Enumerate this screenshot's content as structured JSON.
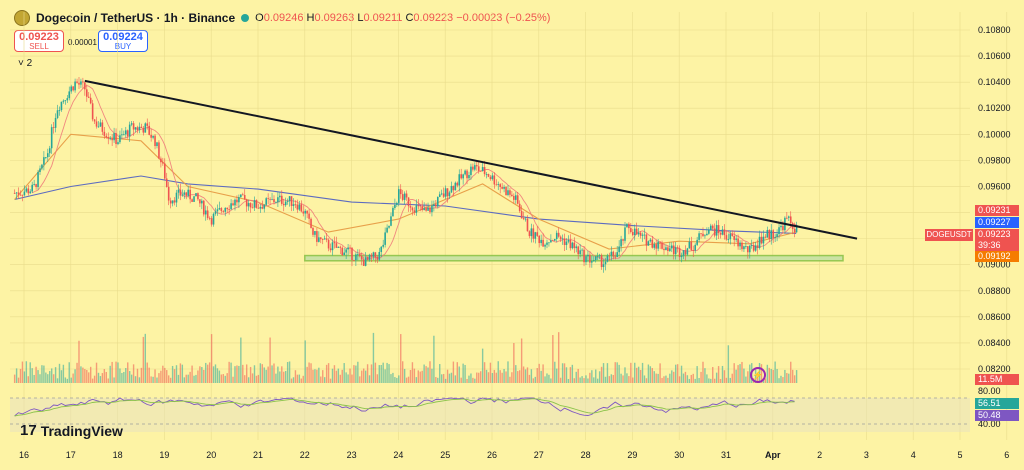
{
  "header": {
    "symbol": "Dogecoin / TetherUS · 1h · Binance",
    "ohlc": {
      "o_label": "O",
      "o": "0.09246",
      "h_label": "H",
      "h": "0.09263",
      "l_label": "L",
      "l": "0.09211",
      "c_label": "C",
      "c": "0.09223",
      "change": "−0.00023 (−0.25%)"
    },
    "coin_icon": "dogecoin-icon"
  },
  "trade": {
    "sell_price": "0.09223",
    "sell_label": "SELL",
    "buy_price": "0.09224",
    "buy_label": "BUY",
    "spread": "0.00001"
  },
  "indicators_count": "˅ 2",
  "price_tags": {
    "high": "0.09231",
    "blue": "0.09227",
    "last": "0.09223",
    "countdown": "39:36",
    "low": "0.09192",
    "symbol": "DOGEUSDT",
    "volume": "11.5M",
    "rsi_a": "56.51",
    "rsi_b": "50.48"
  },
  "logo": "TradingView",
  "colors": {
    "background": "#fdf3a4",
    "up": "#26a69a",
    "down": "#ef5350",
    "trendline": "#131722",
    "support": "#8bc34a",
    "ma_slow": "#5c6bc0",
    "ma_mid": "#e8a04a",
    "ma_fast": "#ef7b7b"
  },
  "chart_data": {
    "type": "candlestick",
    "symbol": "DOGEUSDT",
    "interval": "1h",
    "price_axis": {
      "ticks": [
        "0.10800",
        "0.10600",
        "0.10400",
        "0.10200",
        "0.10000",
        "0.09800",
        "0.09600",
        "0.09400",
        "0.09200",
        "0.09000",
        "0.08800",
        "0.08600",
        "0.08400",
        "0.08200"
      ],
      "range": [
        0.0815,
        0.109
      ]
    },
    "rsi_axis": {
      "ticks": [
        "80.00",
        "40.00"
      ]
    },
    "x_ticks": [
      "16",
      "17",
      "18",
      "19",
      "20",
      "21",
      "22",
      "23",
      "24",
      "25",
      "26",
      "27",
      "28",
      "29",
      "30",
      "31",
      "Apr",
      "2",
      "3",
      "4",
      "5",
      "6"
    ],
    "close_path": [
      [
        15.8,
        0.0955
      ],
      [
        16.2,
        0.0958
      ],
      [
        16.5,
        0.0985
      ],
      [
        16.7,
        0.102
      ],
      [
        16.9,
        0.103
      ],
      [
        17.1,
        0.104
      ],
      [
        17.3,
        0.1035
      ],
      [
        17.5,
        0.101
      ],
      [
        17.8,
        0.1
      ],
      [
        18.0,
        0.0995
      ],
      [
        18.3,
        0.1005
      ],
      [
        18.6,
        0.1005
      ],
      [
        18.8,
        0.0995
      ],
      [
        19.0,
        0.097
      ],
      [
        19.1,
        0.095
      ],
      [
        19.4,
        0.0955
      ],
      [
        19.7,
        0.095
      ],
      [
        20.0,
        0.0935
      ],
      [
        20.3,
        0.0945
      ],
      [
        20.6,
        0.095
      ],
      [
        21.0,
        0.0945
      ],
      [
        21.4,
        0.095
      ],
      [
        21.8,
        0.0948
      ],
      [
        22.0,
        0.094
      ],
      [
        22.2,
        0.0922
      ],
      [
        22.5,
        0.0915
      ],
      [
        22.9,
        0.091
      ],
      [
        23.3,
        0.0902
      ],
      [
        23.6,
        0.0908
      ],
      [
        23.8,
        0.093
      ],
      [
        24.0,
        0.0955
      ],
      [
        24.3,
        0.0945
      ],
      [
        24.6,
        0.094
      ],
      [
        25.0,
        0.0955
      ],
      [
        25.3,
        0.0965
      ],
      [
        25.6,
        0.0975
      ],
      [
        25.9,
        0.097
      ],
      [
        26.2,
        0.096
      ],
      [
        26.5,
        0.095
      ],
      [
        26.8,
        0.0925
      ],
      [
        27.1,
        0.0918
      ],
      [
        27.4,
        0.0922
      ],
      [
        27.7,
        0.0915
      ],
      [
        28.0,
        0.0905
      ],
      [
        28.4,
        0.0902
      ],
      [
        28.7,
        0.091
      ],
      [
        28.9,
        0.093
      ],
      [
        29.2,
        0.092
      ],
      [
        29.6,
        0.0915
      ],
      [
        30.0,
        0.091
      ],
      [
        30.3,
        0.0915
      ],
      [
        30.6,
        0.0928
      ],
      [
        30.9,
        0.0925
      ],
      [
        31.2,
        0.0918
      ],
      [
        31.5,
        0.091
      ],
      [
        31.8,
        0.0922
      ],
      [
        32.1,
        0.0925
      ],
      [
        32.3,
        0.0935
      ],
      [
        32.5,
        0.0927
      ]
    ],
    "trendline": [
      [
        17.3,
        0.1041
      ],
      [
        33.8,
        0.092
      ]
    ],
    "support_zone": [
      [
        22.0,
        33.5
      ],
      [
        0.0903,
        0.0907
      ]
    ],
    "moving_averages": [
      {
        "period_role": "slow",
        "points": [
          [
            15.8,
            0.095
          ],
          [
            17.0,
            0.096
          ],
          [
            18.5,
            0.0968
          ],
          [
            19.5,
            0.0962
          ],
          [
            21.0,
            0.0958
          ],
          [
            23.0,
            0.0948
          ],
          [
            25.0,
            0.0945
          ],
          [
            27.0,
            0.0935
          ],
          [
            29.0,
            0.093
          ],
          [
            31.0,
            0.0926
          ],
          [
            32.5,
            0.0924
          ]
        ]
      },
      {
        "period_role": "mid",
        "points": [
          [
            15.8,
            0.095
          ],
          [
            17.0,
            0.1
          ],
          [
            18.5,
            0.0995
          ],
          [
            19.5,
            0.096
          ],
          [
            21.0,
            0.0948
          ],
          [
            22.5,
            0.0925
          ],
          [
            24.0,
            0.0935
          ],
          [
            25.8,
            0.0962
          ],
          [
            27.0,
            0.0935
          ],
          [
            28.5,
            0.0912
          ],
          [
            30.0,
            0.0918
          ],
          [
            31.5,
            0.0916
          ],
          [
            32.5,
            0.0925
          ]
        ]
      }
    ]
  }
}
